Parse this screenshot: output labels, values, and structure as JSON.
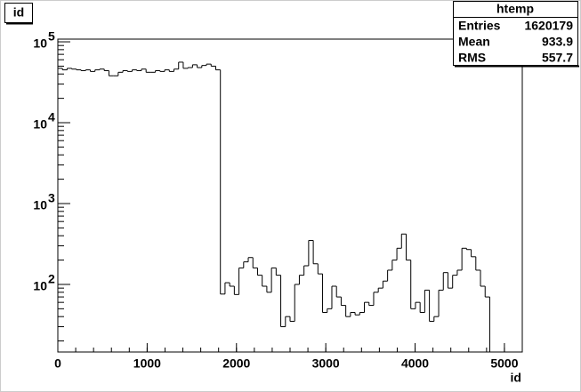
{
  "chart_data": {
    "type": "histogram",
    "title": "id",
    "x_label": "id",
    "log_y": true,
    "color": "#000000",
    "xlim": [
      0,
      5200
    ],
    "xticks": [
      0,
      1000,
      2000,
      3000,
      4000,
      5000
    ],
    "ylim": [
      14.6,
      108000
    ],
    "yticks": [
      {
        "value": 100,
        "label": "10",
        "exponent": "2"
      },
      {
        "value": 1000,
        "label": "10",
        "exponent": "3"
      },
      {
        "value": 10000,
        "label": "10",
        "exponent": "4"
      },
      {
        "value": 100000,
        "label": "10",
        "exponent": "5"
      }
    ],
    "bins": [
      0,
      52,
      104,
      156,
      208,
      260,
      312,
      364,
      416,
      468,
      520,
      572,
      624,
      676,
      728,
      780,
      832,
      884,
      936,
      988,
      1040,
      1092,
      1144,
      1196,
      1248,
      1300,
      1352,
      1404,
      1456,
      1508,
      1560,
      1612,
      1664,
      1716,
      1768,
      1820,
      1872,
      1924,
      1976,
      2028,
      2080,
      2132,
      2184,
      2236,
      2288,
      2340,
      2392,
      2444,
      2496,
      2548,
      2600,
      2652,
      2704,
      2756,
      2808,
      2860,
      2912,
      2964,
      3016,
      3068,
      3120,
      3172,
      3224,
      3276,
      3328,
      3380,
      3432,
      3484,
      3536,
      3588,
      3640,
      3692,
      3744,
      3796,
      3848,
      3900,
      3952,
      4004,
      4056,
      4108,
      4160,
      4212,
      4264,
      4316,
      4368,
      4420,
      4472,
      4524,
      4576,
      4628,
      4680,
      4732,
      4784,
      4836,
      4888,
      4940,
      4992,
      5044,
      5096,
      5148,
      5200
    ],
    "values": [
      47000,
      45000,
      47000,
      46000,
      45000,
      44000,
      45000,
      43000,
      45000,
      46000,
      44000,
      38000,
      38000,
      42000,
      44000,
      43000,
      45000,
      44000,
      46000,
      42000,
      42000,
      44000,
      43000,
      45000,
      43000,
      46000,
      56000,
      47000,
      48000,
      52000,
      48000,
      51000,
      53000,
      50000,
      45000,
      76,
      105,
      95,
      75,
      160,
      190,
      215,
      160,
      130,
      95,
      80,
      160,
      130,
      30,
      40,
      35,
      100,
      130,
      170,
      350,
      180,
      135,
      45,
      50,
      95,
      70,
      55,
      40,
      45,
      42,
      45,
      60,
      55,
      80,
      90,
      110,
      150,
      200,
      280,
      420,
      200,
      50,
      60,
      45,
      85,
      35,
      40,
      85,
      140,
      90,
      130,
      150,
      280,
      270,
      220,
      150,
      95,
      70,
      0,
      0,
      0,
      0,
      0,
      0,
      0
    ],
    "stats": {
      "name": "htemp",
      "rows": [
        [
          "Entries",
          1620179
        ],
        [
          "Mean",
          933.9
        ],
        [
          "RMS",
          557.7
        ]
      ]
    }
  }
}
